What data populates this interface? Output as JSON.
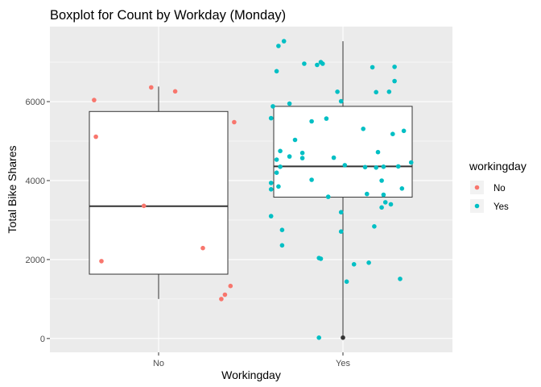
{
  "chart_data": {
    "type": "boxplot",
    "title": "Boxplot for Count by Workday (Monday)",
    "xlabel": "Workingday",
    "ylabel": "Total Bike Shares",
    "categories": [
      "No",
      "Yes"
    ],
    "ylim": [
      -350,
      7900
    ],
    "yticks": [
      0,
      2000,
      4000,
      6000
    ],
    "grid": true,
    "legend": {
      "title": "workingday",
      "position": "right",
      "entries": [
        {
          "label": "No",
          "color": "#F8766D"
        },
        {
          "label": "Yes",
          "color": "#00BFC4"
        }
      ]
    },
    "boxes": [
      {
        "category": "No",
        "min": 1000,
        "q1": 1630,
        "median": 3350,
        "q3": 5750,
        "max": 6380
      },
      {
        "category": "Yes",
        "min": 22,
        "q1": 3580,
        "median": 4360,
        "q3": 5880,
        "max": 7530
      }
    ],
    "outliers": [
      {
        "category": "Yes",
        "value": 22
      }
    ],
    "points": [
      {
        "category": "No",
        "jitter": -0.35,
        "value": 6040
      },
      {
        "category": "No",
        "jitter": -0.34,
        "value": 5110
      },
      {
        "category": "No",
        "jitter": -0.31,
        "value": 1960
      },
      {
        "category": "No",
        "jitter": -0.04,
        "value": 6360
      },
      {
        "category": "No",
        "jitter": 0.09,
        "value": 6260
      },
      {
        "category": "No",
        "jitter": 0.41,
        "value": 5480
      },
      {
        "category": "No",
        "jitter": -0.08,
        "value": 3360
      },
      {
        "category": "No",
        "jitter": 0.24,
        "value": 2290
      },
      {
        "category": "No",
        "jitter": 0.39,
        "value": 1330
      },
      {
        "category": "No",
        "jitter": 0.36,
        "value": 1110
      },
      {
        "category": "No",
        "jitter": 0.34,
        "value": 1000
      },
      {
        "category": "Yes",
        "jitter": -0.32,
        "value": 7530
      },
      {
        "category": "Yes",
        "jitter": -0.35,
        "value": 7410
      },
      {
        "category": "Yes",
        "jitter": -0.21,
        "value": 6960
      },
      {
        "category": "Yes",
        "jitter": -0.14,
        "value": 6930
      },
      {
        "category": "Yes",
        "jitter": -0.12,
        "value": 7000
      },
      {
        "category": "Yes",
        "jitter": -0.11,
        "value": 6960
      },
      {
        "category": "Yes",
        "jitter": -0.36,
        "value": 6770
      },
      {
        "category": "Yes",
        "jitter": 0.16,
        "value": 6870
      },
      {
        "category": "Yes",
        "jitter": 0.28,
        "value": 6880
      },
      {
        "category": "Yes",
        "jitter": 0.28,
        "value": 6520
      },
      {
        "category": "Yes",
        "jitter": 0.25,
        "value": 6250
      },
      {
        "category": "Yes",
        "jitter": 0.18,
        "value": 6240
      },
      {
        "category": "Yes",
        "jitter": -0.03,
        "value": 6250
      },
      {
        "category": "Yes",
        "jitter": -0.01,
        "value": 6010
      },
      {
        "category": "Yes",
        "jitter": -0.29,
        "value": 5950
      },
      {
        "category": "Yes",
        "jitter": -0.38,
        "value": 5880
      },
      {
        "category": "Yes",
        "jitter": -0.39,
        "value": 5580
      },
      {
        "category": "Yes",
        "jitter": -0.09,
        "value": 5570
      },
      {
        "category": "Yes",
        "jitter": -0.17,
        "value": 5500
      },
      {
        "category": "Yes",
        "jitter": 0.11,
        "value": 5310
      },
      {
        "category": "Yes",
        "jitter": 0.33,
        "value": 5260
      },
      {
        "category": "Yes",
        "jitter": 0.27,
        "value": 5180
      },
      {
        "category": "Yes",
        "jitter": -0.26,
        "value": 5030
      },
      {
        "category": "Yes",
        "jitter": -0.34,
        "value": 4750
      },
      {
        "category": "Yes",
        "jitter": -0.22,
        "value": 4700
      },
      {
        "category": "Yes",
        "jitter": 0.19,
        "value": 4720
      },
      {
        "category": "Yes",
        "jitter": -0.29,
        "value": 4610
      },
      {
        "category": "Yes",
        "jitter": -0.22,
        "value": 4570
      },
      {
        "category": "Yes",
        "jitter": -0.05,
        "value": 4580
      },
      {
        "category": "Yes",
        "jitter": 0.37,
        "value": 4460
      },
      {
        "category": "Yes",
        "jitter": -0.36,
        "value": 4530
      },
      {
        "category": "Yes",
        "jitter": -0.34,
        "value": 4350
      },
      {
        "category": "Yes",
        "jitter": -0.36,
        "value": 4200
      },
      {
        "category": "Yes",
        "jitter": 0.01,
        "value": 4390
      },
      {
        "category": "Yes",
        "jitter": 0.12,
        "value": 4340
      },
      {
        "category": "Yes",
        "jitter": 0.18,
        "value": 4330
      },
      {
        "category": "Yes",
        "jitter": 0.22,
        "value": 4350
      },
      {
        "category": "Yes",
        "jitter": 0.3,
        "value": 4360
      },
      {
        "category": "Yes",
        "jitter": -0.17,
        "value": 4020
      },
      {
        "category": "Yes",
        "jitter": 0.21,
        "value": 4000
      },
      {
        "category": "Yes",
        "jitter": -0.39,
        "value": 3940
      },
      {
        "category": "Yes",
        "jitter": -0.35,
        "value": 3850
      },
      {
        "category": "Yes",
        "jitter": 0.32,
        "value": 3800
      },
      {
        "category": "Yes",
        "jitter": -0.39,
        "value": 3780
      },
      {
        "category": "Yes",
        "jitter": 0.13,
        "value": 3660
      },
      {
        "category": "Yes",
        "jitter": 0.22,
        "value": 3640
      },
      {
        "category": "Yes",
        "jitter": -0.08,
        "value": 3590
      },
      {
        "category": "Yes",
        "jitter": 0.23,
        "value": 3450
      },
      {
        "category": "Yes",
        "jitter": 0.26,
        "value": 3400
      },
      {
        "category": "Yes",
        "jitter": 0.21,
        "value": 3320
      },
      {
        "category": "Yes",
        "jitter": -0.01,
        "value": 3200
      },
      {
        "category": "Yes",
        "jitter": -0.39,
        "value": 3100
      },
      {
        "category": "Yes",
        "jitter": 0.17,
        "value": 2840
      },
      {
        "category": "Yes",
        "jitter": -0.33,
        "value": 2750
      },
      {
        "category": "Yes",
        "jitter": -0.01,
        "value": 2710
      },
      {
        "category": "Yes",
        "jitter": -0.33,
        "value": 2360
      },
      {
        "category": "Yes",
        "jitter": -0.13,
        "value": 2040
      },
      {
        "category": "Yes",
        "jitter": -0.12,
        "value": 2020
      },
      {
        "category": "Yes",
        "jitter": 0.06,
        "value": 1880
      },
      {
        "category": "Yes",
        "jitter": 0.14,
        "value": 1920
      },
      {
        "category": "Yes",
        "jitter": 0.31,
        "value": 1510
      },
      {
        "category": "Yes",
        "jitter": 0.02,
        "value": 1440
      },
      {
        "category": "Yes",
        "jitter": -0.13,
        "value": 22
      }
    ]
  }
}
